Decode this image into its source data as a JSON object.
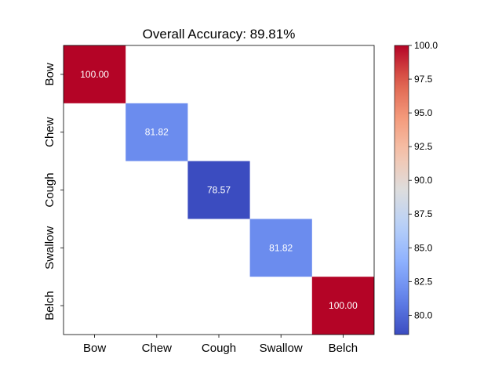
{
  "chart_data": {
    "type": "heatmap",
    "title": "Overall Accuracy: 89.81%",
    "xlabel": "",
    "ylabel": "",
    "x_categories": [
      "Bow",
      "Chew",
      "Cough",
      "Swallow",
      "Belch"
    ],
    "y_categories": [
      "Bow",
      "Chew",
      "Cough",
      "Swallow",
      "Belch"
    ],
    "cells": [
      {
        "row": 0,
        "col": 0,
        "value": 100.0,
        "label": "100.00"
      },
      {
        "row": 1,
        "col": 1,
        "value": 81.82,
        "label": "81.82"
      },
      {
        "row": 2,
        "col": 2,
        "value": 78.57,
        "label": "78.57"
      },
      {
        "row": 3,
        "col": 3,
        "value": 81.82,
        "label": "81.82"
      },
      {
        "row": 4,
        "col": 4,
        "value": 100.0,
        "label": "100.00"
      }
    ],
    "empty_cell_color": "#ffffff",
    "colormap": "coolwarm",
    "colorbar": {
      "range": [
        78.57,
        100.0
      ],
      "ticks": [
        80.0,
        82.5,
        85.0,
        87.5,
        90.0,
        92.5,
        95.0,
        97.5,
        100.0
      ],
      "tick_labels": [
        "80.0",
        "82.5",
        "85.0",
        "87.5",
        "90.0",
        "92.5",
        "95.0",
        "97.5",
        "100.0"
      ]
    },
    "grid": false,
    "legend": "colorbar-right"
  }
}
